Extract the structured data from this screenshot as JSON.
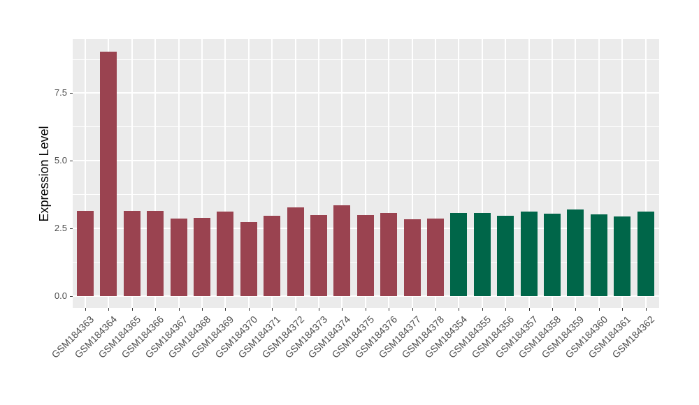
{
  "chart_data": {
    "type": "bar",
    "title": "",
    "xlabel": "",
    "ylabel": "Expression Level",
    "categories": [
      "GSM184363",
      "GSM184364",
      "GSM184365",
      "GSM184366",
      "GSM184367",
      "GSM184368",
      "GSM184369",
      "GSM184370",
      "GSM184371",
      "GSM184372",
      "GSM184373",
      "GSM184374",
      "GSM184375",
      "GSM184376",
      "GSM184377",
      "GSM184378",
      "GSM184354",
      "GSM184355",
      "GSM184356",
      "GSM184357",
      "GSM184358",
      "GSM184359",
      "GSM184360",
      "GSM184361",
      "GSM184362"
    ],
    "values": [
      3.13,
      9.03,
      3.13,
      3.13,
      2.85,
      2.89,
      3.11,
      2.74,
      2.96,
      3.28,
      3.0,
      3.36,
      3.0,
      3.07,
      2.84,
      2.87,
      3.06,
      3.06,
      2.95,
      3.12,
      3.05,
      3.2,
      3.02,
      2.94,
      3.12
    ],
    "groups": [
      "group1",
      "group1",
      "group1",
      "group1",
      "group1",
      "group1",
      "group1",
      "group1",
      "group1",
      "group1",
      "group1",
      "group1",
      "group1",
      "group1",
      "group1",
      "group1",
      "group2",
      "group2",
      "group2",
      "group2",
      "group2",
      "group2",
      "group2",
      "group2",
      "group2"
    ],
    "series_colors": {
      "group1": "#9A4350",
      "group2": "#006649"
    },
    "yticks": [
      0.0,
      2.5,
      5.0,
      7.5
    ],
    "ytick_labels": [
      "0.0",
      "2.5",
      "5.0",
      "7.5"
    ],
    "yticks_minor": [
      1.25,
      3.75,
      6.25,
      8.75
    ],
    "ylim": [
      -0.45,
      9.5
    ],
    "grid": true,
    "legend": "none",
    "panel_background": "#EBEBEB",
    "gridline_color": "#FFFFFF",
    "axis_text_color": "#4d4d4d"
  }
}
